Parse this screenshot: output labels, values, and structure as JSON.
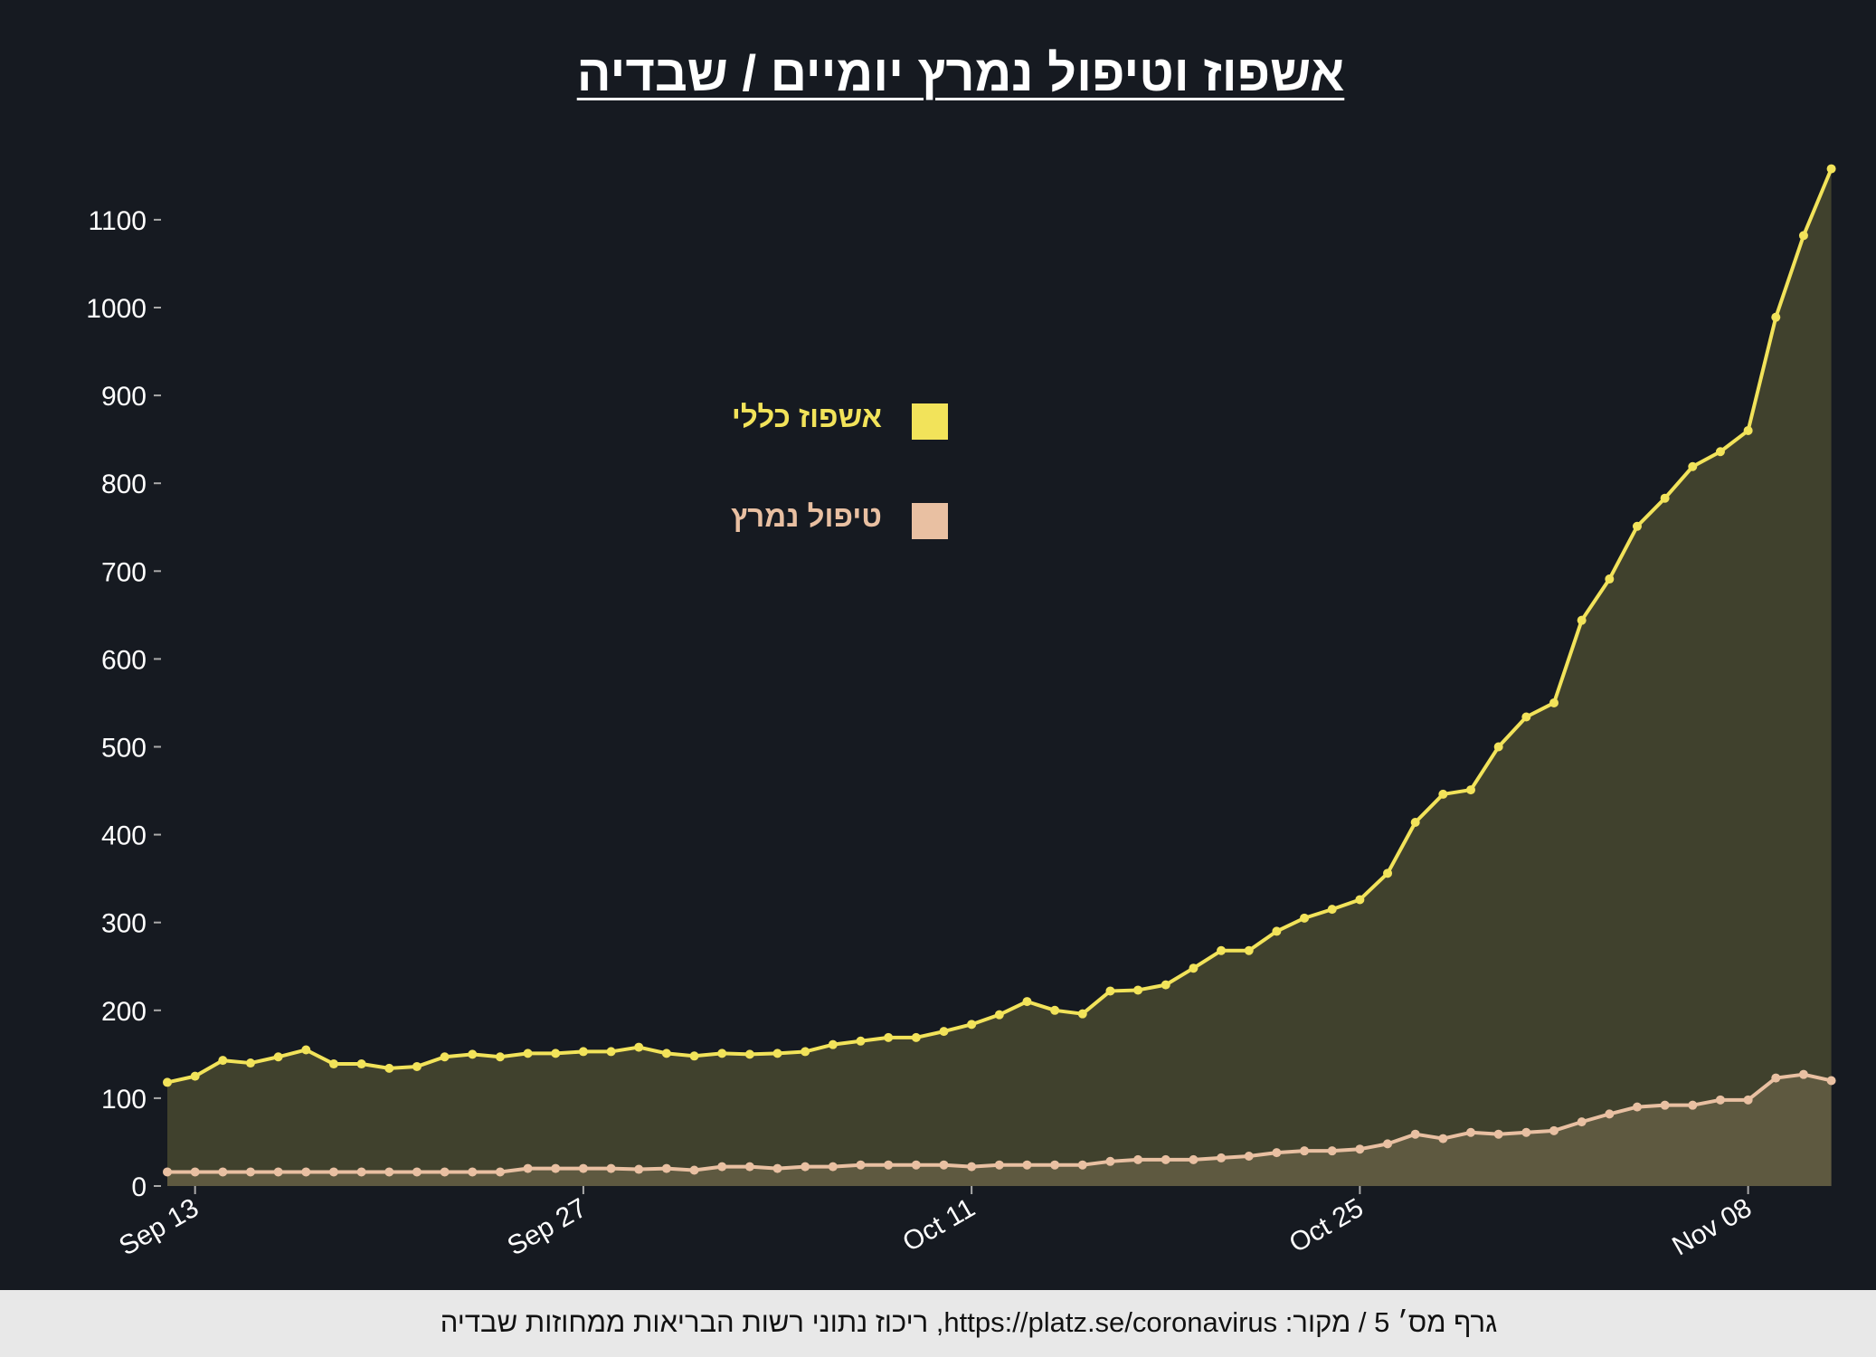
{
  "title": "אשפוז וטיפול נמרץ יומיים /  שבדיה",
  "footer": "גרף מס׳ 5 / מקור: https://platz.se/coronavirus, ריכוז נתוני רשות הבריאות ממחוזות שבדיה",
  "colors": {
    "background": "#161a21",
    "general": "#f2e35a",
    "icu": "#e9c0a2",
    "footer_bg": "#e8e8e8"
  },
  "chart_data": {
    "type": "area",
    "x_start": "Sep 12",
    "x_end": "Nov 11",
    "x_ticks": [
      {
        "index": 1,
        "label": "Sep 13"
      },
      {
        "index": 15,
        "label": "Sep 27"
      },
      {
        "index": 29,
        "label": "Oct 11"
      },
      {
        "index": 43,
        "label": "Oct 25"
      },
      {
        "index": 57,
        "label": "Nov 08"
      }
    ],
    "y_ticks": [
      0,
      100,
      200,
      300,
      400,
      500,
      600,
      700,
      800,
      900,
      1000,
      1100
    ],
    "ylim": [
      0,
      1160
    ],
    "grid": false,
    "legend_placement": "upper-center",
    "series": [
      {
        "name": "אשפוז כללי",
        "color": "#f2e35a",
        "values": [
          118,
          125,
          143,
          140,
          147,
          155,
          139,
          139,
          134,
          136,
          147,
          150,
          147,
          151,
          151,
          153,
          153,
          158,
          151,
          148,
          151,
          150,
          151,
          153,
          161,
          165,
          169,
          169,
          176,
          184,
          195,
          210,
          200,
          196,
          222,
          223,
          229,
          248,
          268,
          268,
          290,
          305,
          315,
          326,
          356,
          414,
          446,
          451,
          500,
          534,
          550,
          644,
          691,
          751,
          783,
          819,
          836,
          860,
          989,
          1082,
          1158
        ]
      },
      {
        "name": "טיפול נמרץ",
        "color": "#e9c0a2",
        "values": [
          16,
          16,
          16,
          16,
          16,
          16,
          16,
          16,
          16,
          16,
          16,
          16,
          16,
          20,
          20,
          20,
          20,
          19,
          20,
          18,
          22,
          22,
          20,
          22,
          22,
          24,
          24,
          24,
          24,
          22,
          24,
          24,
          24,
          24,
          28,
          30,
          30,
          30,
          32,
          34,
          38,
          40,
          40,
          42,
          48,
          59,
          54,
          61,
          59,
          61,
          63,
          73,
          82,
          90,
          92,
          92,
          98,
          98,
          123,
          127,
          120
        ]
      }
    ]
  }
}
